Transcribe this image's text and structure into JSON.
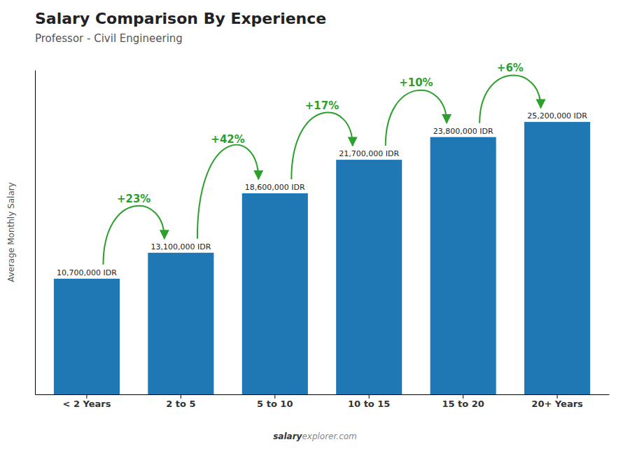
{
  "chart_data": {
    "type": "bar",
    "title": "Salary Comparison By Experience",
    "subtitle": "Professor - Civil Engineering",
    "categories": [
      "< 2 Years",
      "2 to 5",
      "5 to 10",
      "10 to 15",
      "15 to 20",
      "20+ Years"
    ],
    "values": [
      10700000,
      13100000,
      18600000,
      21700000,
      23800000,
      25200000
    ],
    "value_labels": [
      "10,700,000 IDR",
      "13,100,000 IDR",
      "18,600,000 IDR",
      "21,700,000 IDR",
      "23,800,000 IDR",
      "25,200,000 IDR"
    ],
    "data_labels": true,
    "annotations": [
      "+23%",
      "+42%",
      "+17%",
      "+10%",
      "+6%"
    ],
    "ylabel": "Average Monthly Salary",
    "ylim": [
      0,
      30000000
    ],
    "tick_labels": "x",
    "footer": [
      "salary",
      "explorer.com"
    ]
  }
}
